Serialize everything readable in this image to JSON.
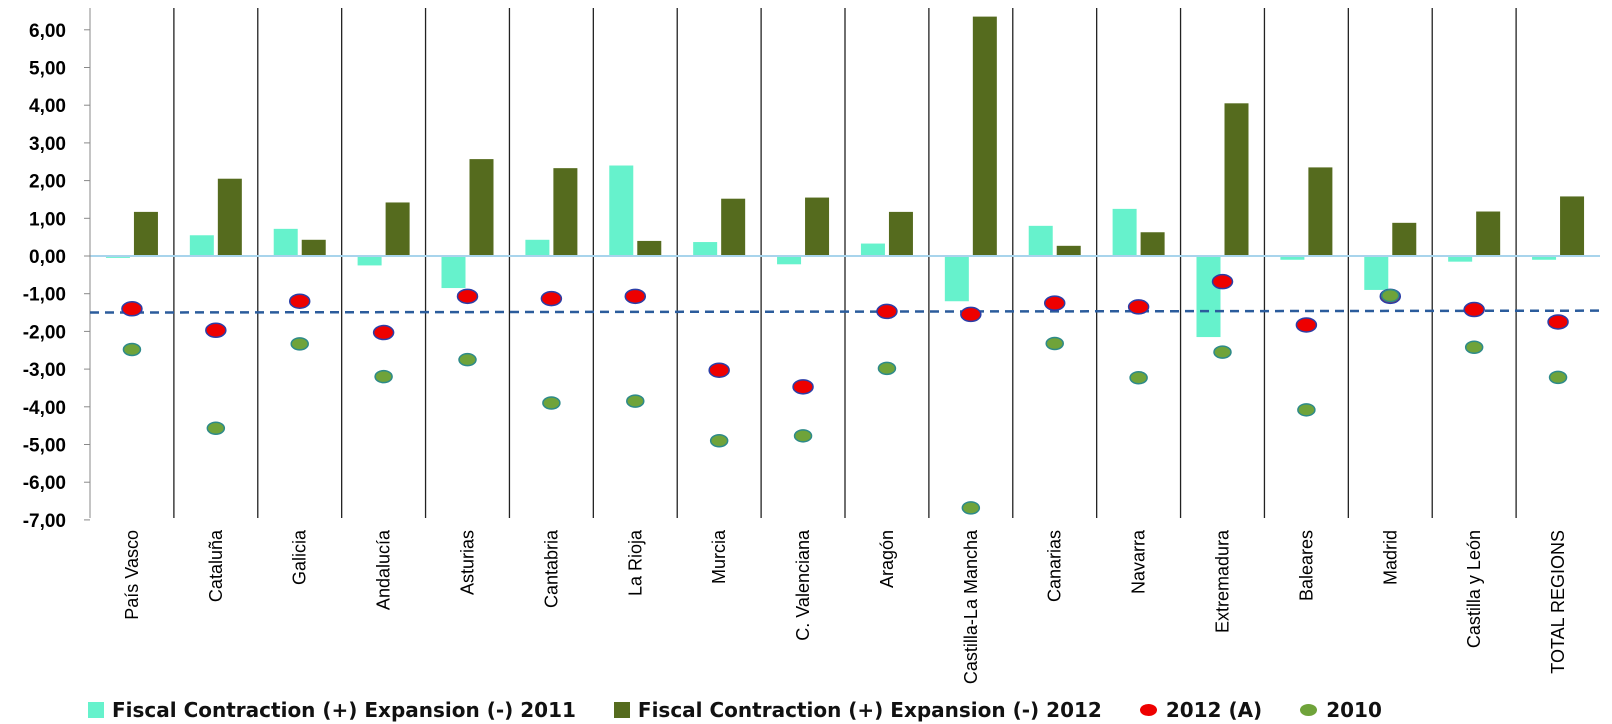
{
  "chart_data": {
    "type": "bar",
    "categories": [
      "País Vasco",
      "Cataluña",
      "Galicia",
      "Andalucía",
      "Asturias",
      "Cantabria",
      "La Rioja",
      "Murcia",
      "C. Valenciana",
      "Aragón",
      "Castilla-La Mancha",
      "Canarias",
      "Navarra",
      "Extremadura",
      "Baleares",
      "Madrid",
      "Castilla y León",
      "TOTAL REGIONS"
    ],
    "series": [
      {
        "name": "Fiscal Contraction (+) Expansion (-) 2011",
        "kind": "bar",
        "color": "#66f2cc",
        "values": [
          -0.05,
          0.55,
          0.72,
          -0.25,
          -0.85,
          0.43,
          2.4,
          0.37,
          -0.22,
          0.33,
          -1.2,
          0.8,
          1.25,
          -2.15,
          -0.1,
          -0.9,
          -0.15,
          -0.1
        ]
      },
      {
        "name": "Fiscal Contraction (+) Expansion (-) 2012",
        "kind": "bar",
        "color": "#556b1e",
        "values": [
          1.17,
          2.05,
          0.43,
          1.42,
          2.57,
          2.33,
          0.4,
          1.52,
          1.55,
          1.17,
          6.35,
          0.27,
          0.63,
          4.05,
          2.35,
          0.88,
          1.18,
          1.58
        ]
      },
      {
        "name": "2012 (A)",
        "kind": "dot",
        "color": "#ee0000",
        "edge": "#2b3ea8",
        "values": [
          -1.4,
          -1.97,
          -1.2,
          -2.03,
          -1.07,
          -1.13,
          -1.07,
          -3.03,
          -3.47,
          -1.47,
          -1.55,
          -1.25,
          -1.35,
          -0.68,
          -1.83,
          -1.07,
          -1.42,
          -1.75
        ]
      },
      {
        "name": "2010",
        "kind": "dot",
        "color": "#6fa33a",
        "edge": "#2d8a8a",
        "values": [
          -2.48,
          -4.57,
          -2.33,
          -3.2,
          -2.75,
          -3.9,
          -3.85,
          -4.9,
          -4.77,
          -2.98,
          -6.68,
          -2.32,
          -3.23,
          -2.55,
          -4.08,
          -1.05,
          -2.42,
          -3.22
        ]
      }
    ],
    "reference_line": {
      "style": "dashed",
      "color": "#2b5c9c",
      "from": -1.5,
      "to": -1.45
    },
    "yticks": [
      "6,00",
      "5,00",
      "4,00",
      "3,00",
      "2,00",
      "1,00",
      "0,00",
      "-1,00",
      "-2,00",
      "-3,00",
      "-4,00",
      "-5,00",
      "-6,00",
      "-7,00"
    ],
    "ytick_values": [
      6,
      5,
      4,
      3,
      2,
      1,
      0,
      -1,
      -2,
      -3,
      -4,
      -5,
      -6,
      -7
    ],
    "ylim": [
      -7,
      6.5
    ],
    "grid": false,
    "legend_position": "bottom",
    "title": "",
    "xlabel": "",
    "ylabel": ""
  }
}
